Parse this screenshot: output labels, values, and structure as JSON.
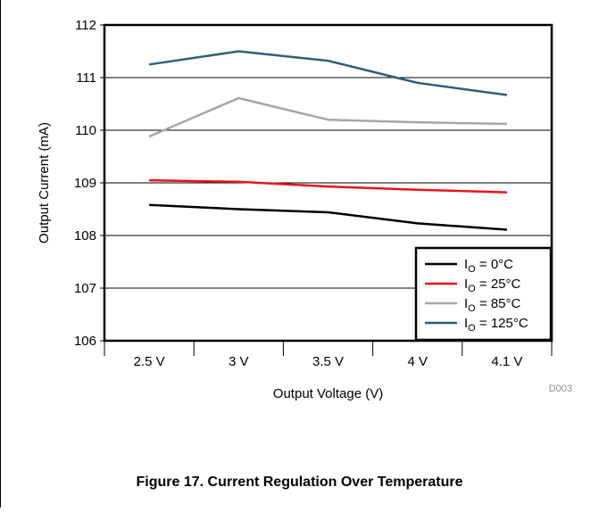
{
  "chart_data": {
    "type": "line",
    "categories": [
      "2.5 V",
      "3 V",
      "3.5 V",
      "4 V",
      "4.1 V"
    ],
    "xlabel": "Output Voltage (V)",
    "ylabel": "Output Current (mA)",
    "ylim": [
      106,
      112
    ],
    "yticks": [
      106,
      107,
      108,
      109,
      110,
      111,
      112
    ],
    "grid": true,
    "legend_position": "bottom-right",
    "series": [
      {
        "name_main": "I",
        "name_sub": "O",
        "name_rest": " = 0°C",
        "color": "#000000",
        "values": [
          108.58,
          108.5,
          108.44,
          108.23,
          108.11
        ]
      },
      {
        "name_main": "I",
        "name_sub": "O",
        "name_rest": " = 25°C",
        "color": "#e8141b",
        "values": [
          109.05,
          109.02,
          108.93,
          108.87,
          108.82
        ]
      },
      {
        "name_main": "I",
        "name_sub": "O",
        "name_rest": " = 85°C",
        "color": "#a6a6a6",
        "values": [
          109.88,
          110.61,
          110.2,
          110.15,
          110.12
        ]
      },
      {
        "name_main": "I",
        "name_sub": "O",
        "name_rest": " = 125°C",
        "color": "#305f78",
        "values": [
          111.25,
          111.5,
          111.32,
          110.9,
          110.67
        ]
      }
    ],
    "figure_id": "D003"
  },
  "caption": "Figure 17. Current Regulation Over Temperature"
}
